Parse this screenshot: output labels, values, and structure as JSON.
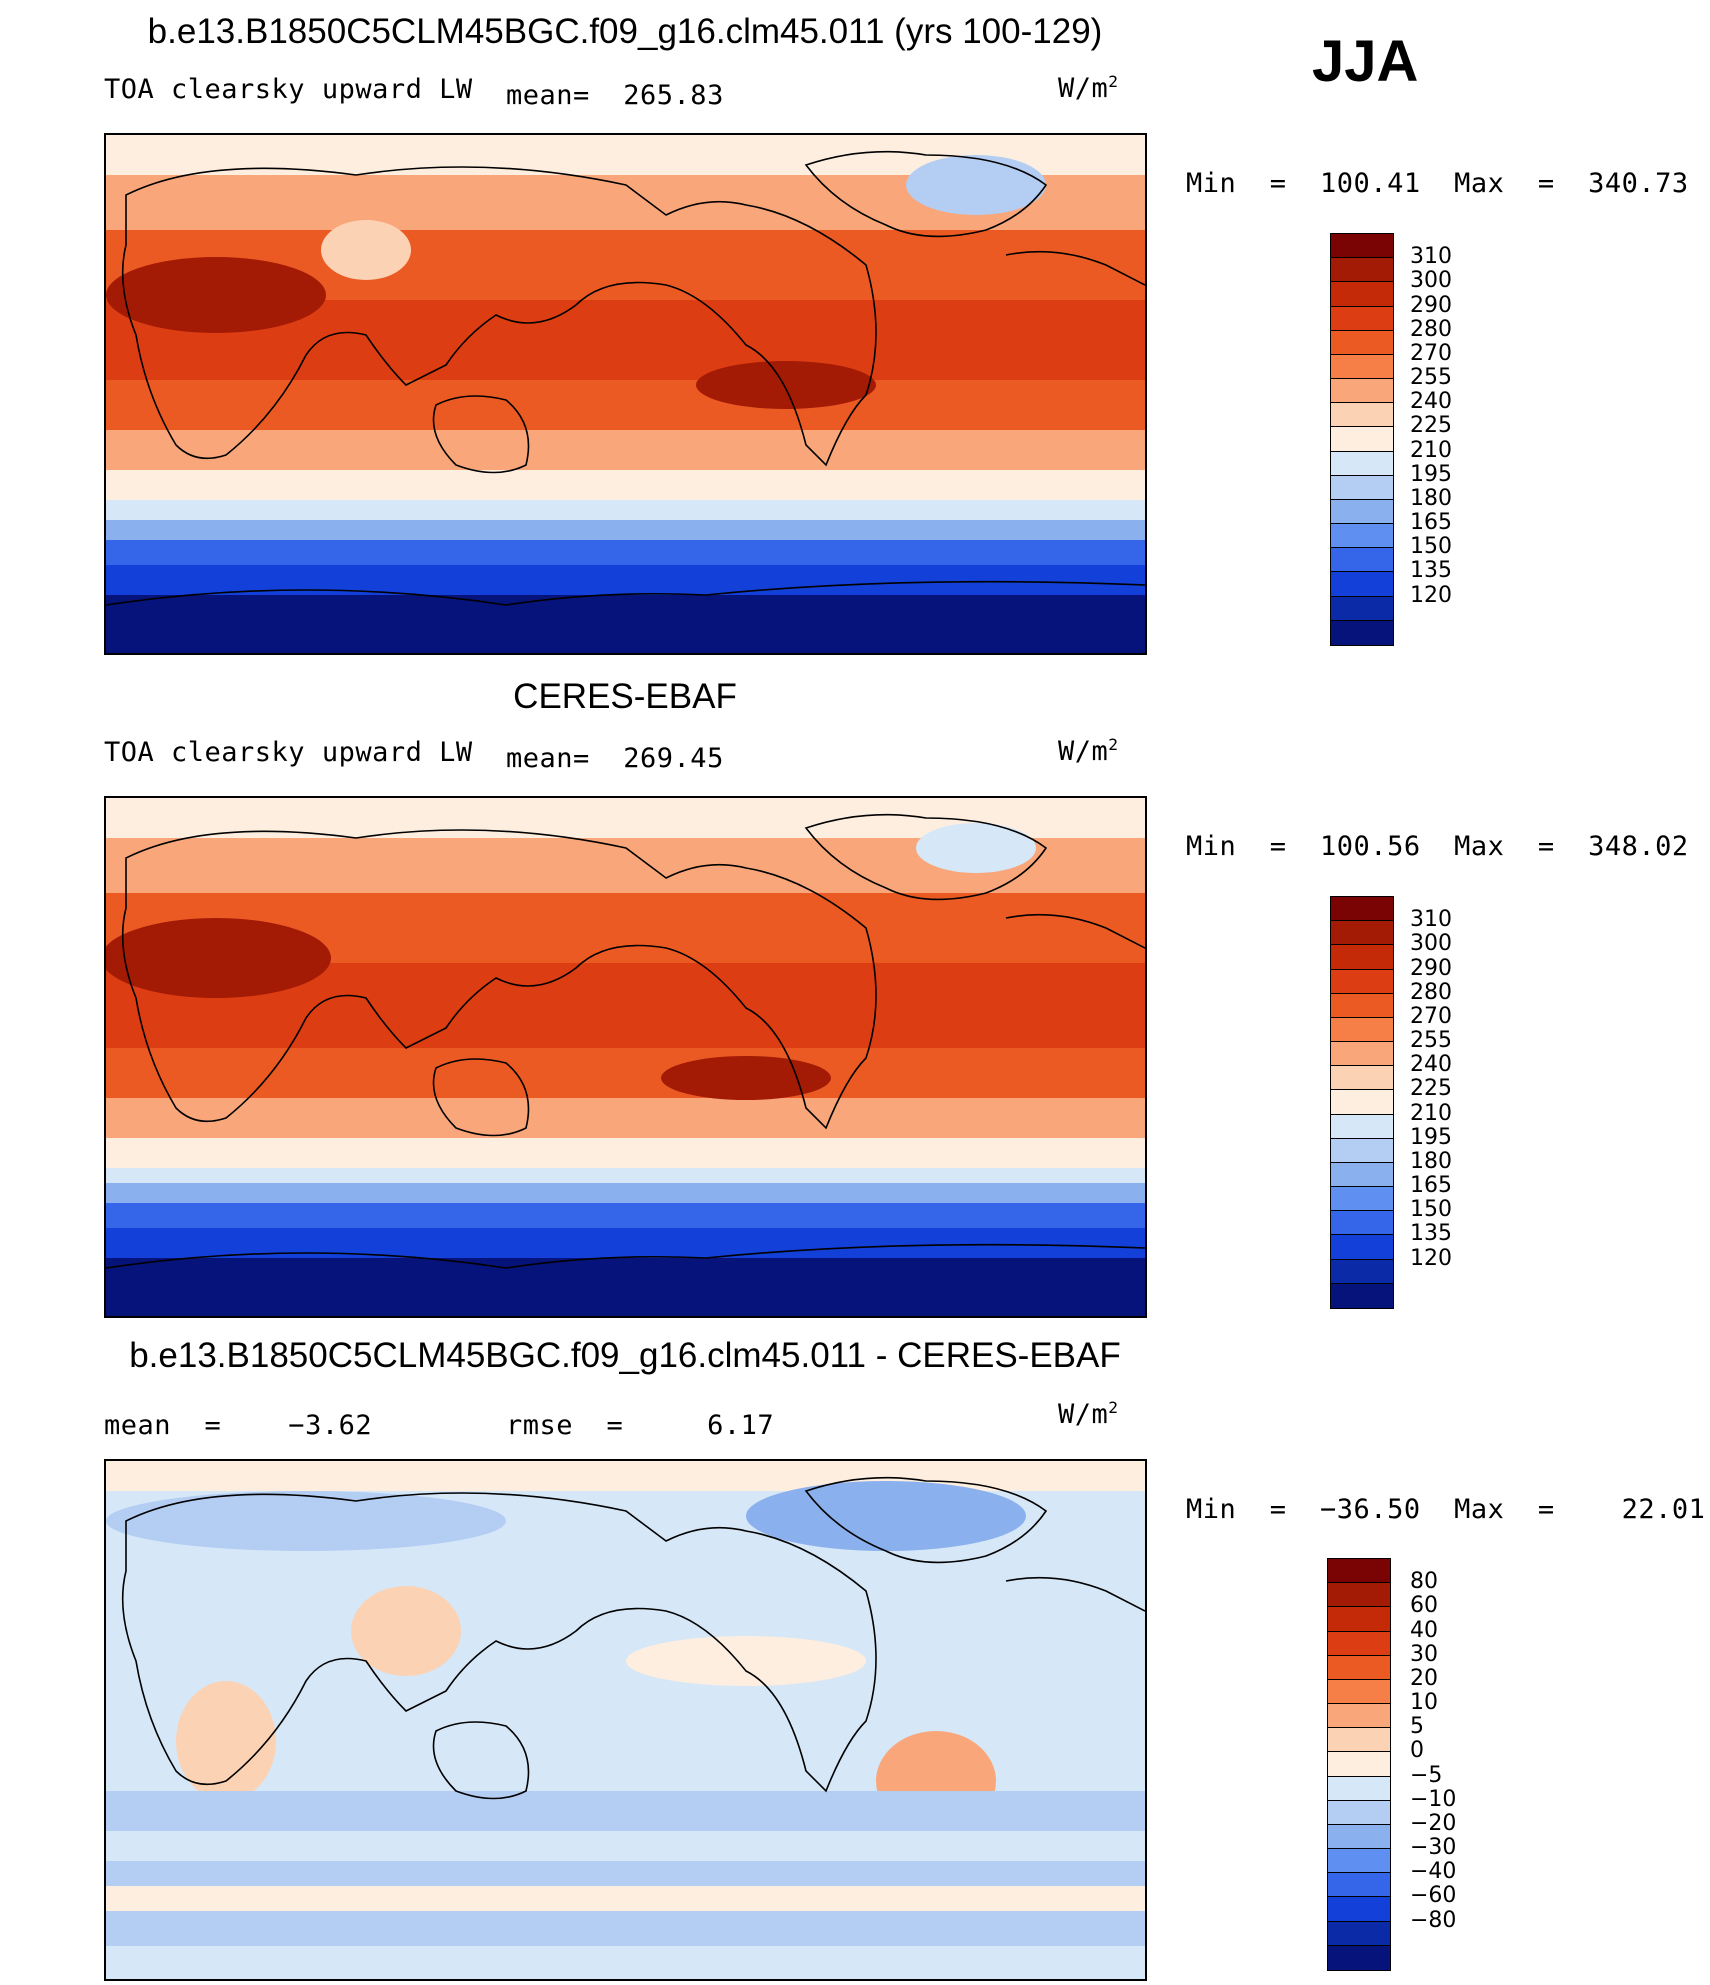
{
  "season": "JJA",
  "panels": [
    {
      "title": "b.e13.B1850C5CLM45BGC.f09_g16.clm45.011 (yrs 100-129)",
      "left_label": "TOA clearsky upward LW",
      "mid_label": "mean=  265.83",
      "units": "W/m",
      "units_exp": "2",
      "minmax": "Min  =  100.41  Max  =  340.73",
      "colorbar": {
        "labels": [
          "310",
          "300",
          "290",
          "280",
          "270",
          "255",
          "240",
          "225",
          "210",
          "195",
          "180",
          "165",
          "150",
          "135",
          "120"
        ],
        "colors": [
          "#7a0403",
          "#a31a05",
          "#c42a08",
          "#dd3d12",
          "#ec5a24",
          "#f57f47",
          "#f9a77a",
          "#fcd2b4",
          "#fdeee0",
          "#d6e7f7",
          "#b4cdf2",
          "#8bb0ee",
          "#5f8ff0",
          "#3566ea",
          "#1240d8",
          "#0a2aa8",
          "#06137a"
        ]
      }
    },
    {
      "title": "CERES-EBAF",
      "left_label": "TOA clearsky upward LW",
      "mid_label": "mean=  269.45",
      "units": "W/m",
      "units_exp": "2",
      "minmax": "Min  =  100.56  Max  =  348.02",
      "colorbar": {
        "labels": [
          "310",
          "300",
          "290",
          "280",
          "270",
          "255",
          "240",
          "225",
          "210",
          "195",
          "180",
          "165",
          "150",
          "135",
          "120"
        ],
        "colors": [
          "#7a0403",
          "#a31a05",
          "#c42a08",
          "#dd3d12",
          "#ec5a24",
          "#f57f47",
          "#f9a77a",
          "#fcd2b4",
          "#fdeee0",
          "#d6e7f7",
          "#b4cdf2",
          "#8bb0ee",
          "#5f8ff0",
          "#3566ea",
          "#1240d8",
          "#0a2aa8",
          "#06137a"
        ]
      }
    },
    {
      "title": "b.e13.B1850C5CLM45BGC.f09_g16.clm45.011 - CERES-EBAF",
      "left_label": "mean  =    −3.62",
      "mid_label": "rmse  =     6.17",
      "units": "W/m",
      "units_exp": "2",
      "minmax": "Min  =  −36.50  Max  =    22.01",
      "colorbar": {
        "labels": [
          "80",
          "60",
          "40",
          "30",
          "20",
          "10",
          "5",
          "0",
          "−5",
          "−10",
          "−20",
          "−30",
          "−40",
          "−60",
          "−80"
        ],
        "colors": [
          "#7a0403",
          "#a31a05",
          "#c42a08",
          "#dd3d12",
          "#ec5a24",
          "#f57f47",
          "#f9a77a",
          "#fcd2b4",
          "#fdeee0",
          "#d6e7f7",
          "#b4cdf2",
          "#8bb0ee",
          "#5f8ff0",
          "#3566ea",
          "#1240d8",
          "#0a2aa8",
          "#06137a"
        ]
      }
    }
  ]
}
